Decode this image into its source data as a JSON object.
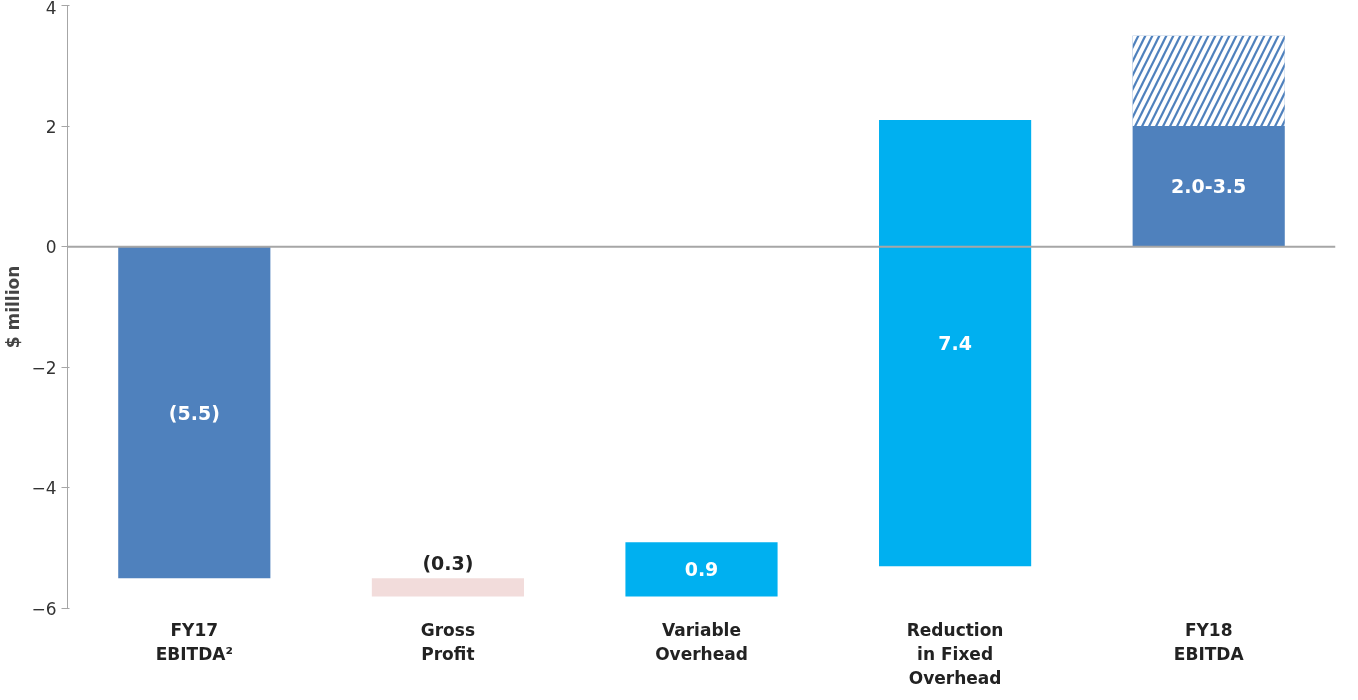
{
  "chart_data": {
    "type": "bar",
    "ylabel": "$ million",
    "categories": [
      "FY17\nEBITDA²",
      "Gross\nProfit",
      "Variable\nOverhead",
      "Reduction\nin Fixed\nOverhead",
      "FY18\nEBITDA"
    ],
    "series": [
      {
        "values": [
          -5.5,
          -0.3,
          0.9,
          7.4,
          2.0
        ],
        "base": [
          0,
          -5.5,
          -5.8,
          -5.3,
          0
        ],
        "colors": [
          "#4f81bd",
          "#f2dcdb",
          "#00b0f0",
          "#00b0f0",
          "#4f81bd"
        ],
        "value_labels": [
          "(5.5)",
          "(0.3)",
          "0.9",
          "7.4",
          "2.0-3.5"
        ]
      },
      {
        "values": [
          null,
          null,
          null,
          null,
          1.5
        ],
        "base": [
          null,
          null,
          null,
          null,
          2.0
        ],
        "color": "#4f81bd"
      }
    ],
    "ylim": [
      -6,
      4
    ],
    "yticks": [
      -6,
      -4,
      -2,
      0,
      2,
      4
    ],
    "ref_lines": [
      {
        "axis": "y",
        "value": 0,
        "color": "#a6a6a6"
      }
    ]
  }
}
